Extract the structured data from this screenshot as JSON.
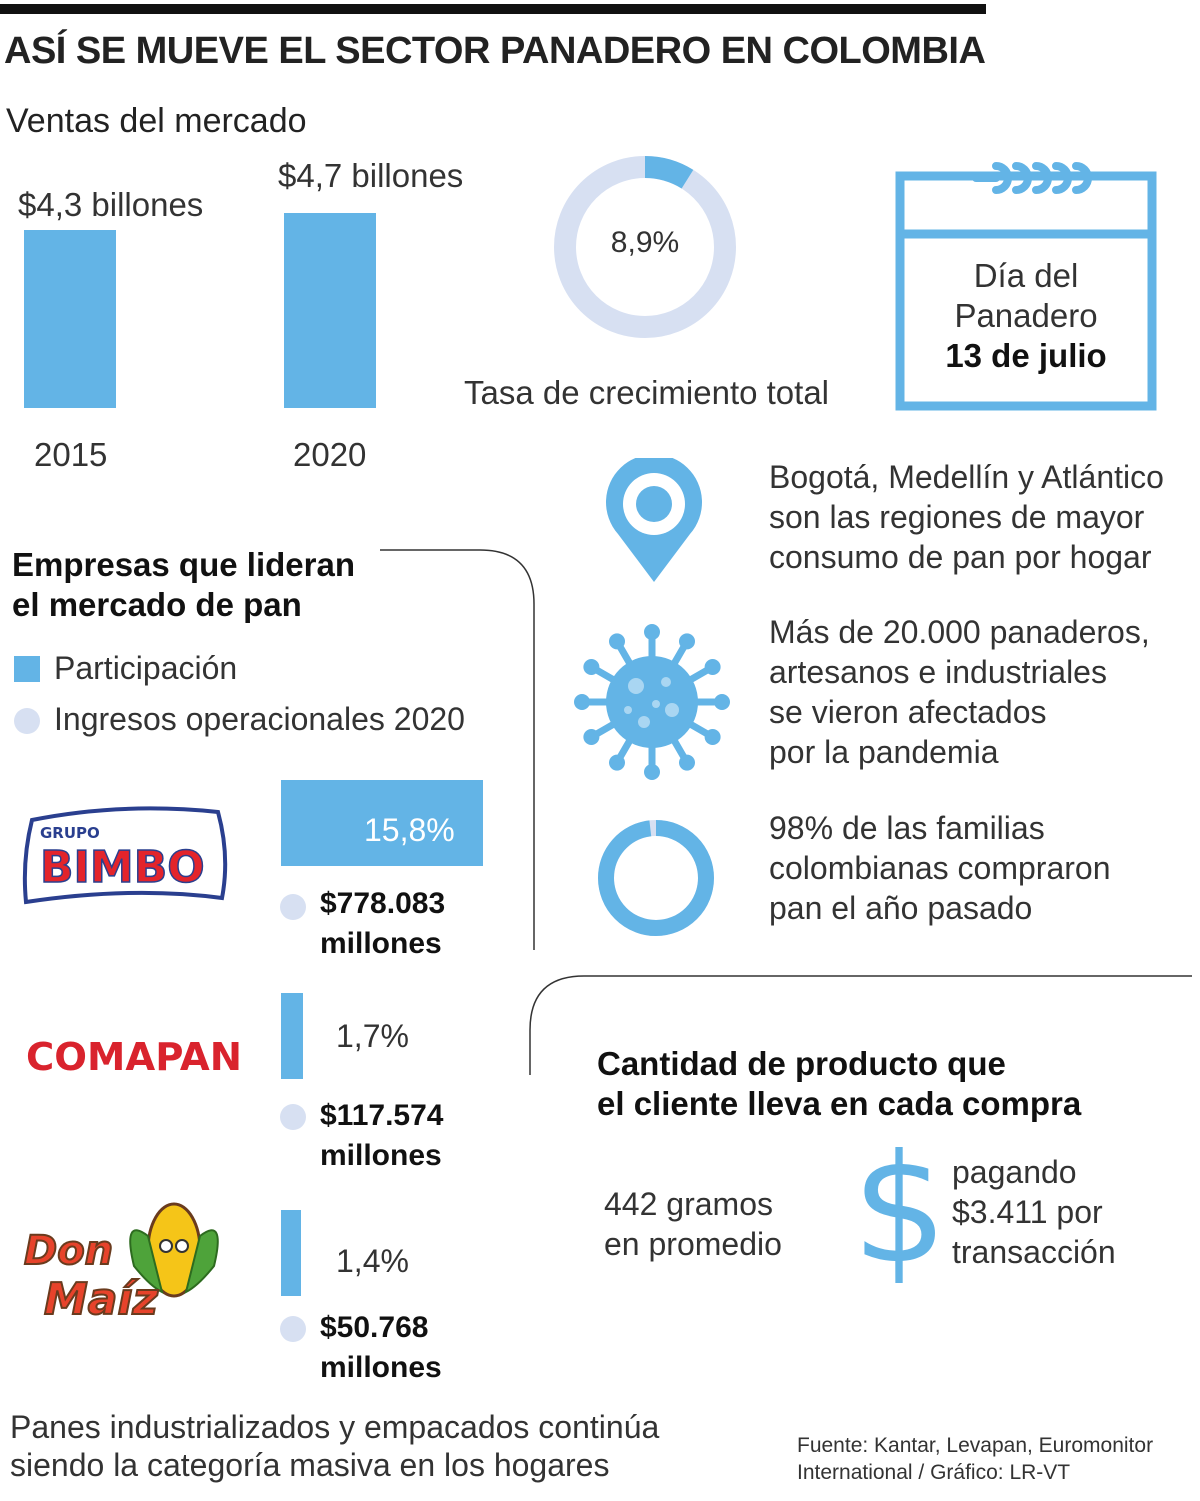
{
  "title": "ASÍ SE MUEVE EL SECTOR PANADERO EN COLOMBIA",
  "colors": {
    "accent": "#63b4e6",
    "light": "#d7e0f2",
    "comapan": "#d9232d",
    "bimbo": "#e3242b",
    "donmaiz": "#e7432b"
  },
  "market_sales": {
    "heading": "Ventas del mercado",
    "bars": [
      {
        "year": "2015",
        "label": "$4,3 billones",
        "value": 4.3
      },
      {
        "year": "2020",
        "label": "$4,7 billones",
        "value": 4.7
      }
    ]
  },
  "growth": {
    "value_label": "8,9%",
    "value": 8.9,
    "caption": "Tasa de crecimiento total"
  },
  "calendar": {
    "line1": "Día del",
    "line2": "Panadero",
    "date": "13 de julio"
  },
  "facts": [
    {
      "icon": "location-pin-icon",
      "lines": [
        "Bogotá, Medellín y Atlántico",
        "son las regiones de mayor",
        "consumo de pan por hogar"
      ]
    },
    {
      "icon": "virus-icon",
      "lines": [
        "Más de 20.000 panaderos,",
        "artesanos e industriales",
        "se vieron afectados",
        "por la pandemia"
      ]
    },
    {
      "icon": "donut-98-icon",
      "value": 98,
      "lines": [
        "98% de las familias",
        "colombianas compraron",
        "pan el año pasado"
      ]
    }
  ],
  "leaders": {
    "heading_lines": [
      "Empresas que lideran",
      "el mercado de pan"
    ],
    "legend": {
      "share": "Participación",
      "revenue": "Ingresos operacionales 2020"
    },
    "companies": [
      {
        "logo_top": "GRUPO",
        "logo": "BIMBO",
        "share_label": "15,8%",
        "share": 15.8,
        "revenue": "$778.083",
        "unit": "millones"
      },
      {
        "logo": "COMAPAN",
        "share_label": "1,7%",
        "share": 1.7,
        "revenue": "$117.574",
        "unit": "millones"
      },
      {
        "logo_a": "Don",
        "logo_b": "Maíz",
        "share_label": "1,4%",
        "share": 1.4,
        "revenue": "$50.768",
        "unit": "millones"
      }
    ]
  },
  "purchase": {
    "heading_lines": [
      "Cantidad de producto que",
      "el cliente lleva en cada compra"
    ],
    "grams_lines": [
      "442 gramos",
      "en promedio"
    ],
    "dollar": "$",
    "payment_lines": [
      "pagando",
      "$3.411 por",
      "transacción"
    ]
  },
  "footer": {
    "note_lines": [
      "Panes industrializados y empacados continúa",
      "siendo la categoría masiva en los hogares"
    ],
    "source_lines": [
      "Fuente: Kantar, Levapan, Euromonitor",
      "International / Gráfico: LR-VT"
    ]
  },
  "chart_data": [
    {
      "type": "bar",
      "title": "Ventas del mercado",
      "categories": [
        "2015",
        "2020"
      ],
      "values": [
        4.3,
        4.7
      ],
      "data_labels": [
        "$4,3 billones",
        "$4,7 billones"
      ],
      "xlabel": "",
      "ylabel": ""
    },
    {
      "type": "pie",
      "title": "Tasa de crecimiento total",
      "values": [
        8.9,
        91.1
      ],
      "data_labels": [
        "8,9%"
      ]
    },
    {
      "type": "bar",
      "title": "Empresas que lideran el mercado de pan",
      "categories": [
        "Grupo Bimbo",
        "Comapan",
        "Don Maíz"
      ],
      "series": [
        {
          "name": "Participación",
          "values": [
            15.8,
            1.7,
            1.4
          ]
        },
        {
          "name": "Ingresos operacionales 2020",
          "values": [
            778083,
            117574,
            50768
          ]
        }
      ]
    },
    {
      "type": "pie",
      "title": "98% de las familias colombianas compraron pan el año pasado",
      "values": [
        98,
        2
      ]
    }
  ]
}
